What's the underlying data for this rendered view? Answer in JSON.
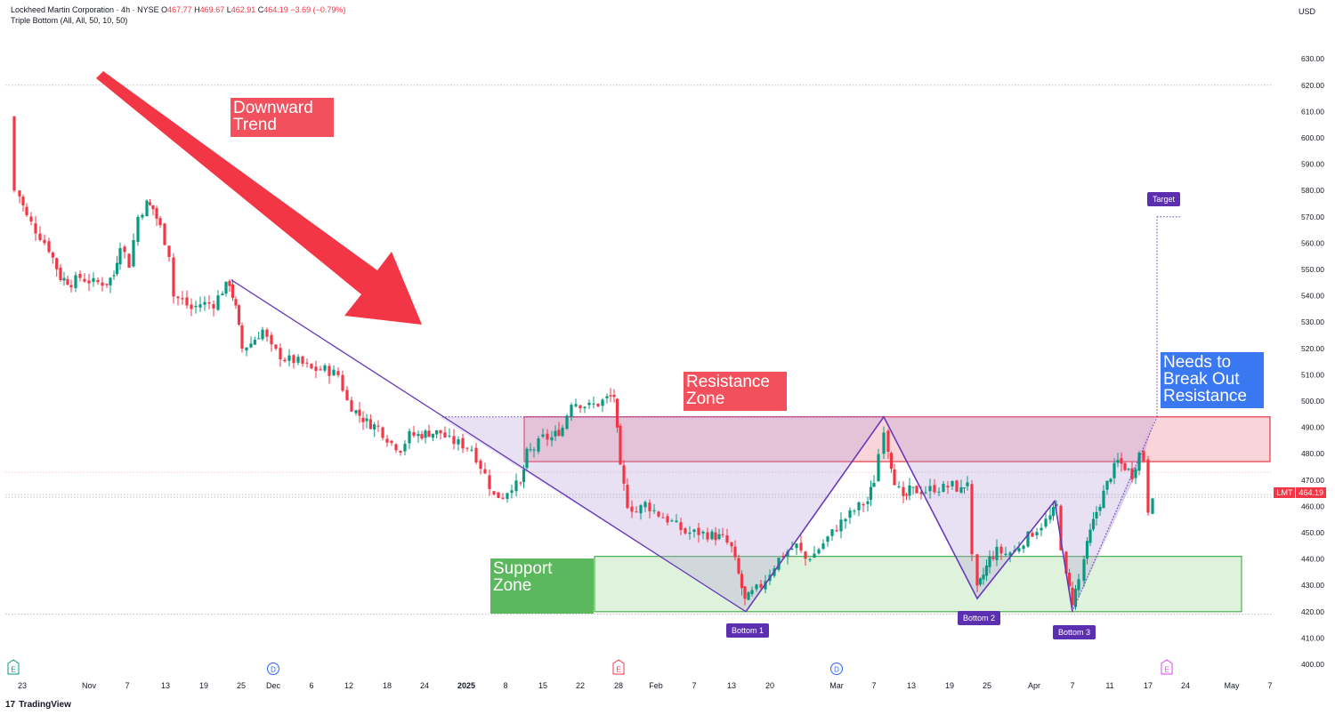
{
  "header": {
    "symbol_line": "Lockheed Martin Corporation · 4h · NYSE",
    "ohlc": [
      {
        "label": "O",
        "value": "467.77"
      },
      {
        "label": "H",
        "value": "469.67"
      },
      {
        "label": "L",
        "value": "462.91"
      },
      {
        "label": "C",
        "value": "464.19"
      }
    ],
    "change": "−3.69 (−0.79%)",
    "indicator": "Triple Bottom (All, All, 50, 10, 50)"
  },
  "currency": "USD",
  "last_price": {
    "symbol": "LMT",
    "value": "464.19"
  },
  "brand": "TradingView",
  "chart_data": {
    "type": "candlestick",
    "title": "Lockheed Martin Corporation · 4h · NYSE",
    "price_axis": {
      "ylim": [
        395,
        638
      ],
      "ticks": [
        400,
        410,
        420,
        430,
        440,
        450,
        460,
        470,
        480,
        490,
        500,
        510,
        520,
        530,
        540,
        550,
        560,
        570,
        580,
        590,
        600,
        610,
        620,
        630
      ]
    },
    "time_axis": {
      "labels": [
        "23",
        "Nov",
        "7",
        "13",
        "19",
        "25",
        "Dec",
        "6",
        "12",
        "18",
        "24",
        "2025",
        "8",
        "15",
        "22",
        "28",
        "Feb",
        "7",
        "13",
        "20",
        "Mar",
        "7",
        "13",
        "19",
        "25",
        "Apr",
        "7",
        "11",
        "17",
        "24",
        "May",
        "7"
      ],
      "bold_labels": [
        "2025"
      ]
    },
    "events": [
      {
        "letter": "E",
        "kind": "earnings",
        "at": "Oct 22"
      },
      {
        "letter": "D",
        "kind": "dividend",
        "at": "Nov 29"
      },
      {
        "letter": "E",
        "kind": "earnings",
        "at": "Jan 28"
      },
      {
        "letter": "D",
        "kind": "dividend",
        "at": "Feb 28"
      },
      {
        "letter": "E",
        "kind": "earnings",
        "at": "Apr 22"
      }
    ],
    "price_path": [
      [
        15,
        608
      ],
      [
        16,
        580
      ],
      [
        22,
        578
      ],
      [
        30,
        570
      ],
      [
        40,
        565
      ],
      [
        55,
        558
      ],
      [
        68,
        547
      ],
      [
        80,
        545
      ],
      [
        90,
        547
      ],
      [
        105,
        545
      ],
      [
        120,
        545
      ],
      [
        128,
        548
      ],
      [
        135,
        560
      ],
      [
        145,
        552
      ],
      [
        155,
        570
      ],
      [
        165,
        575
      ],
      [
        172,
        573
      ],
      [
        180,
        566
      ],
      [
        190,
        556
      ],
      [
        195,
        540
      ],
      [
        205,
        538
      ],
      [
        215,
        535
      ],
      [
        225,
        537
      ],
      [
        240,
        537
      ],
      [
        250,
        542
      ],
      [
        258,
        545
      ],
      [
        265,
        535
      ],
      [
        272,
        520
      ],
      [
        282,
        522
      ],
      [
        295,
        527
      ],
      [
        305,
        520
      ],
      [
        320,
        516
      ],
      [
        335,
        515
      ],
      [
        350,
        512
      ],
      [
        365,
        512
      ],
      [
        380,
        510
      ],
      [
        390,
        500
      ],
      [
        400,
        496
      ],
      [
        412,
        492
      ],
      [
        425,
        490
      ],
      [
        440,
        484
      ],
      [
        450,
        482
      ],
      [
        460,
        487
      ],
      [
        470,
        487
      ],
      [
        482,
        488
      ],
      [
        495,
        488
      ],
      [
        505,
        485
      ],
      [
        515,
        484
      ],
      [
        530,
        482
      ],
      [
        545,
        472
      ],
      [
        555,
        464
      ],
      [
        565,
        464
      ],
      [
        575,
        468
      ],
      [
        585,
        468
      ],
      [
        592,
        480
      ],
      [
        600,
        482
      ],
      [
        610,
        486
      ],
      [
        620,
        486
      ],
      [
        632,
        490
      ],
      [
        642,
        500
      ],
      [
        652,
        499
      ],
      [
        662,
        498
      ],
      [
        672,
        499
      ],
      [
        682,
        501
      ],
      [
        690,
        502
      ],
      [
        697,
        474
      ],
      [
        705,
        461
      ],
      [
        715,
        458
      ],
      [
        725,
        461
      ],
      [
        740,
        457
      ],
      [
        755,
        454
      ],
      [
        770,
        450
      ],
      [
        785,
        450
      ],
      [
        800,
        449
      ],
      [
        812,
        448
      ],
      [
        822,
        444
      ],
      [
        830,
        434
      ],
      [
        837,
        424
      ],
      [
        845,
        427
      ],
      [
        855,
        430
      ],
      [
        865,
        435
      ],
      [
        875,
        440
      ],
      [
        885,
        443
      ],
      [
        895,
        445
      ],
      [
        905,
        440
      ],
      [
        915,
        442
      ],
      [
        925,
        446
      ],
      [
        935,
        450
      ],
      [
        945,
        454
      ],
      [
        955,
        457
      ],
      [
        965,
        460
      ],
      [
        975,
        462
      ],
      [
        982,
        470
      ],
      [
        987,
        480
      ],
      [
        993,
        490
      ],
      [
        998,
        482
      ],
      [
        1005,
        470
      ],
      [
        1015,
        462
      ],
      [
        1022,
        466
      ],
      [
        1030,
        466
      ],
      [
        1040,
        466
      ],
      [
        1050,
        467
      ],
      [
        1060,
        467
      ],
      [
        1070,
        468
      ],
      [
        1080,
        466
      ],
      [
        1087,
        470
      ],
      [
        1092,
        440
      ],
      [
        1098,
        428
      ],
      [
        1105,
        434
      ],
      [
        1112,
        440
      ],
      [
        1120,
        443
      ],
      [
        1130,
        442
      ],
      [
        1140,
        443
      ],
      [
        1150,
        447
      ],
      [
        1160,
        450
      ],
      [
        1170,
        453
      ],
      [
        1180,
        456
      ],
      [
        1187,
        460
      ],
      [
        1192,
        445
      ],
      [
        1198,
        433
      ],
      [
        1205,
        424
      ],
      [
        1212,
        432
      ],
      [
        1218,
        440
      ],
      [
        1225,
        450
      ],
      [
        1232,
        458
      ],
      [
        1240,
        465
      ],
      [
        1248,
        472
      ],
      [
        1256,
        477
      ],
      [
        1264,
        475
      ],
      [
        1272,
        472
      ],
      [
        1280,
        480
      ],
      [
        1285,
        478
      ],
      [
        1290,
        459
      ],
      [
        1295,
        465
      ]
    ],
    "patterns": {
      "downward_trendline": {
        "from": [
          260,
          546
        ],
        "to": [
          838,
          420
        ]
      },
      "triple_bottom": {
        "bottoms": [
          {
            "label": "Bottom 1",
            "x": 838,
            "price": 420
          },
          {
            "label": "Bottom 2",
            "x": 1098,
            "price": 425
          },
          {
            "label": "Bottom 3",
            "x": 1205,
            "price": 420
          }
        ],
        "neckline_peaks": [
          {
            "x": 993,
            "price": 494
          },
          {
            "x": 1185,
            "price": 462
          }
        ]
      },
      "resistance_zone": {
        "from_price": 477,
        "to_price": 494
      },
      "support_zone": {
        "from_price": 420,
        "to_price": 441
      },
      "target": {
        "price": 570
      }
    },
    "annotations": {
      "downward_trend": [
        "Downward",
        "Trend"
      ],
      "resistance_zone": [
        "Resistance",
        "Zone"
      ],
      "support_zone": [
        "Support",
        "Zone"
      ],
      "breakout": [
        "Needs to",
        "Break Out",
        "Resistance"
      ],
      "target_label": "Target",
      "bottoms": [
        "Bottom 1",
        "Bottom 2",
        "Bottom 3"
      ]
    },
    "colors": {
      "up": "#089981",
      "down": "#f23645",
      "pattern": "#673ab7",
      "resistance_fill": "#f7c6cb",
      "support_fill": "#d7efd3",
      "downtrend_note": "#f2505d",
      "resistance_note": "#f2505d",
      "support_note": "#5cb85c",
      "breakout_note": "#3a78f2"
    }
  }
}
